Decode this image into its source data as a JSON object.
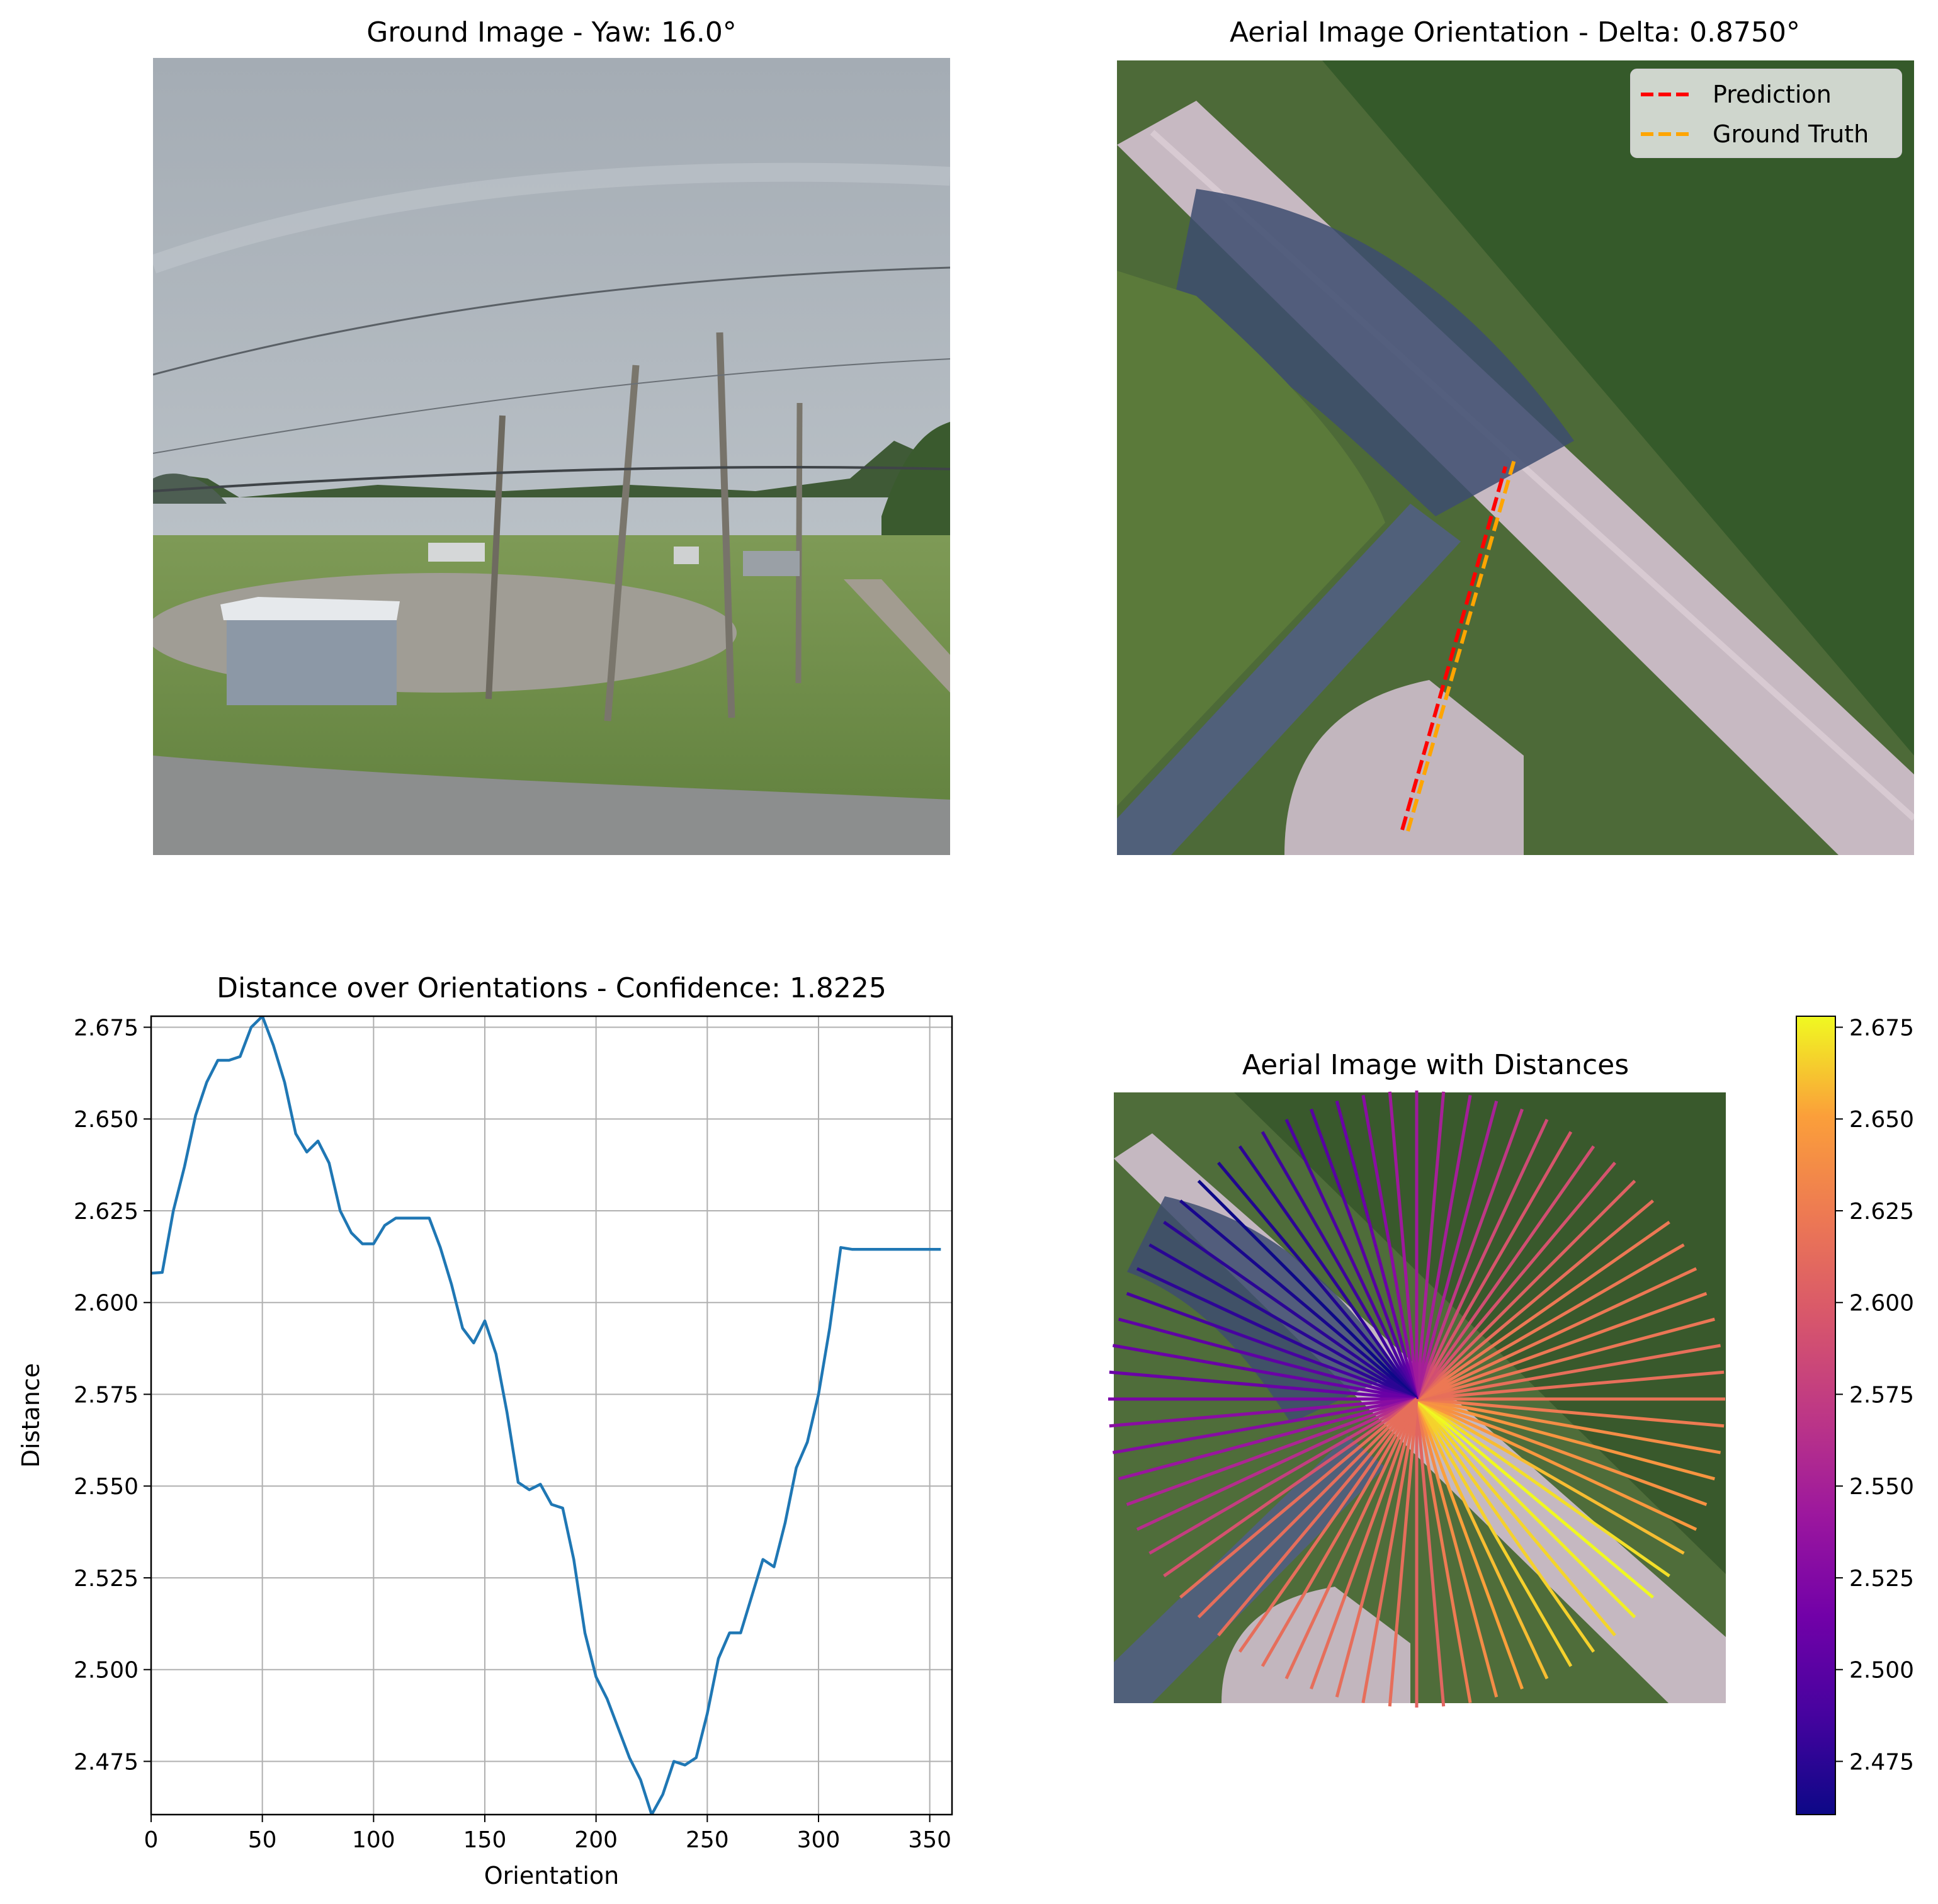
{
  "panels": {
    "ground": {
      "title": "Ground Image - Yaw: 16.0°",
      "yaw_deg": 16.0
    },
    "aerial": {
      "title": "Aerial Image Orientation - Delta: 0.8750°",
      "delta_deg": 0.875,
      "legend": {
        "position": "upper-right",
        "items": [
          {
            "label": "Prediction",
            "color": "#ff0000",
            "style": "dashed"
          },
          {
            "label": "Ground Truth",
            "color": "#ffa500",
            "style": "dashed"
          }
        ]
      }
    },
    "distance": {
      "title": "Distance over Orientations - Confidence: 1.8225"
    },
    "aerial_distances": {
      "title": "Aerial Image with Distances",
      "colormap": "plasma"
    }
  },
  "chart_data": [
    {
      "type": "line",
      "title": "Distance over Orientations - Confidence: 1.8225",
      "xlabel": "Orientation",
      "ylabel": "Distance",
      "xlim": [
        0,
        360
      ],
      "ylim": [
        2.4605,
        2.678
      ],
      "grid": true,
      "line_color": "#1f77b4",
      "xticks": [
        "0",
        "50",
        "100",
        "150",
        "200",
        "250",
        "300",
        "350"
      ],
      "yticks": [
        "2.475",
        "2.500",
        "2.525",
        "2.550",
        "2.575",
        "2.600",
        "2.625",
        "2.650",
        "2.675"
      ],
      "series": [
        {
          "x": [
            0,
            5,
            10,
            15,
            20,
            25,
            30,
            35,
            40,
            45,
            50,
            55,
            60,
            65,
            70,
            75,
            80,
            85,
            90,
            95,
            100,
            105,
            110,
            115,
            120,
            125,
            130,
            135,
            140,
            145,
            150,
            155,
            160,
            165,
            170,
            175,
            180,
            185,
            190,
            195,
            200,
            205,
            210,
            215,
            220,
            225,
            230,
            235,
            240,
            245,
            250,
            255,
            260,
            265,
            270,
            275,
            280,
            285,
            290,
            295,
            300,
            305,
            310,
            315,
            320,
            325,
            330,
            335,
            340,
            345,
            350,
            355
          ],
          "values": [
            2.608,
            2.6082,
            2.625,
            2.637,
            2.651,
            2.66,
            2.666,
            2.666,
            2.667,
            2.675,
            2.678,
            2.67,
            2.66,
            2.646,
            2.641,
            2.644,
            2.638,
            2.625,
            2.619,
            2.616,
            2.616,
            2.621,
            2.623,
            2.623,
            2.623,
            2.623,
            2.615,
            2.605,
            2.593,
            2.589,
            2.595,
            2.586,
            2.57,
            2.551,
            2.549,
            2.5505,
            2.545,
            2.544,
            2.53,
            2.51,
            2.498,
            2.492,
            2.484,
            2.476,
            2.47,
            2.4605,
            2.466,
            2.475,
            2.474,
            2.476,
            2.488,
            2.503,
            2.51,
            2.51,
            2.52,
            2.53,
            2.528,
            2.54,
            2.555,
            2.562,
            2.575,
            2.593,
            2.615,
            2.6145,
            2.6145,
            2.6145,
            2.6145,
            2.6145,
            2.6145,
            2.6145,
            2.6145,
            2.6145
          ]
        }
      ]
    },
    {
      "type": "heatmap",
      "title": "Aerial Image with Distances",
      "description_of_marks": "radial lines around image center, one per orientation, colored by distance",
      "colorbar": {
        "colormap": "plasma",
        "range": [
          2.4605,
          2.678
        ],
        "ticks": [
          "2.475",
          "2.500",
          "2.525",
          "2.550",
          "2.575",
          "2.600",
          "2.625",
          "2.650",
          "2.675"
        ]
      }
    }
  ]
}
